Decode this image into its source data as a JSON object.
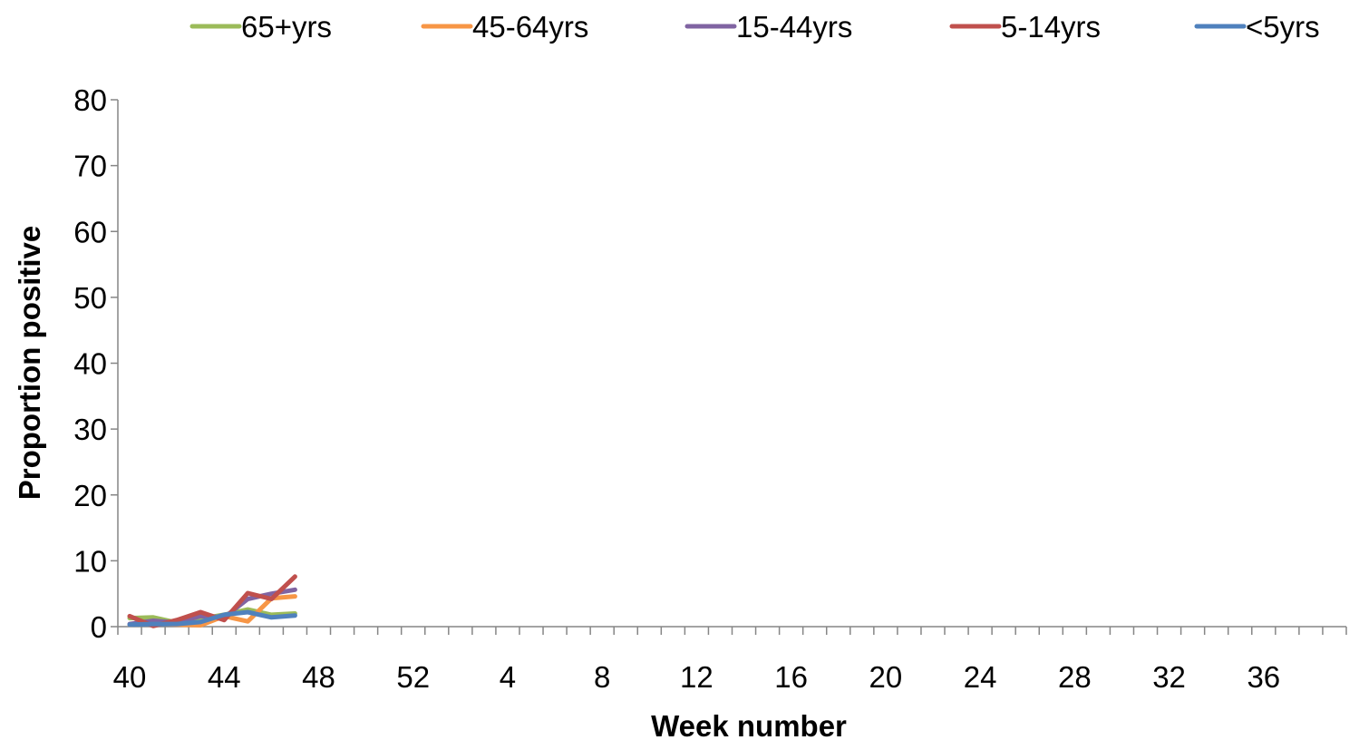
{
  "chart_data": {
    "type": "line",
    "title": "",
    "xlabel": "Week number",
    "ylabel": "Proportion positive",
    "ylim": [
      0,
      80
    ],
    "y_ticks": [
      0,
      10,
      20,
      30,
      40,
      50,
      60,
      70,
      80
    ],
    "x_categories": [
      40,
      41,
      42,
      43,
      44,
      45,
      46,
      47,
      48,
      49,
      50,
      51,
      52,
      1,
      2,
      3,
      4,
      5,
      6,
      7,
      8,
      9,
      10,
      11,
      12,
      13,
      14,
      15,
      16,
      17,
      18,
      19,
      20,
      21,
      22,
      23,
      24,
      25,
      26,
      27,
      28,
      29,
      30,
      31,
      32,
      33,
      34,
      35,
      36,
      37,
      38,
      39
    ],
    "x_tick_labels": [
      "40",
      "44",
      "48",
      "52",
      "4",
      "8",
      "12",
      "16",
      "20",
      "24",
      "28",
      "32",
      "36"
    ],
    "grid": false,
    "legend_position": "top",
    "series": [
      {
        "name": "65+yrs",
        "color": "#9BBB59",
        "x": [
          40,
          41,
          42,
          43,
          44,
          45,
          46,
          47
        ],
        "values": [
          1.3,
          1.4,
          0.6,
          1.2,
          1.8,
          2.6,
          1.8,
          2.0
        ]
      },
      {
        "name": "45-64yrs",
        "color": "#F79646",
        "x": [
          40,
          41,
          42,
          43,
          44,
          45,
          46,
          47
        ],
        "values": [
          0.3,
          0.5,
          0.3,
          0.2,
          1.6,
          0.8,
          4.3,
          4.6
        ]
      },
      {
        "name": "15-44yrs",
        "color": "#8064A2",
        "x": [
          40,
          41,
          42,
          43,
          44,
          45,
          46,
          47
        ],
        "values": [
          0.4,
          0.9,
          0.6,
          1.6,
          1.4,
          4.2,
          5.0,
          5.6
        ]
      },
      {
        "name": "5-14yrs",
        "color": "#C0504D",
        "x": [
          40,
          41,
          42,
          43,
          44,
          45,
          46,
          47
        ],
        "values": [
          1.6,
          0.1,
          1.0,
          2.2,
          1.0,
          5.1,
          4.2,
          7.6
        ]
      },
      {
        "name": "<5yrs",
        "color": "#4F81BD",
        "x": [
          40,
          41,
          42,
          43,
          44,
          45,
          46,
          47
        ],
        "values": [
          0.3,
          0.4,
          0.4,
          0.7,
          1.8,
          2.2,
          1.4,
          1.7
        ]
      }
    ]
  }
}
